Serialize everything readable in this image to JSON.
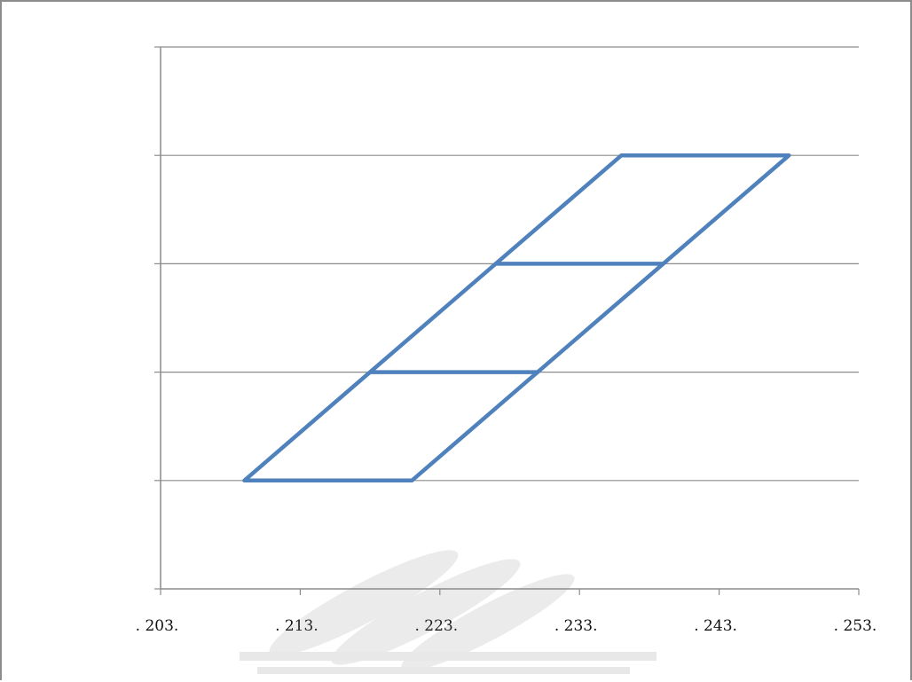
{
  "chart_data": {
    "type": "line",
    "title": "",
    "xlabel": "",
    "ylabel": "",
    "xlim": [
      203,
      253
    ],
    "ylim": [
      0,
      5
    ],
    "x_ticks": [
      203,
      213,
      223,
      233,
      243,
      253
    ],
    "x_tick_labels": [
      ". 203.",
      ". 213.",
      ". 223.",
      ". 233.",
      ". 243.",
      ". 253."
    ],
    "y_gridlines": [
      1,
      2,
      3,
      4,
      5
    ],
    "grid": true,
    "legend": "none",
    "series_color": "#4F81BD",
    "series": [
      {
        "x": [
          209,
          221,
          248,
          236,
          209
        ],
        "y": [
          1,
          1,
          4,
          4,
          1
        ]
      },
      {
        "x": [
          218,
          230
        ],
        "y": [
          2,
          2
        ]
      },
      {
        "x": [
          227,
          239
        ],
        "y": [
          3,
          3
        ]
      }
    ]
  },
  "colors": {
    "axis": "#8C8C8C",
    "grid": "#8C8C8C",
    "frame": "#8C8C8C"
  }
}
